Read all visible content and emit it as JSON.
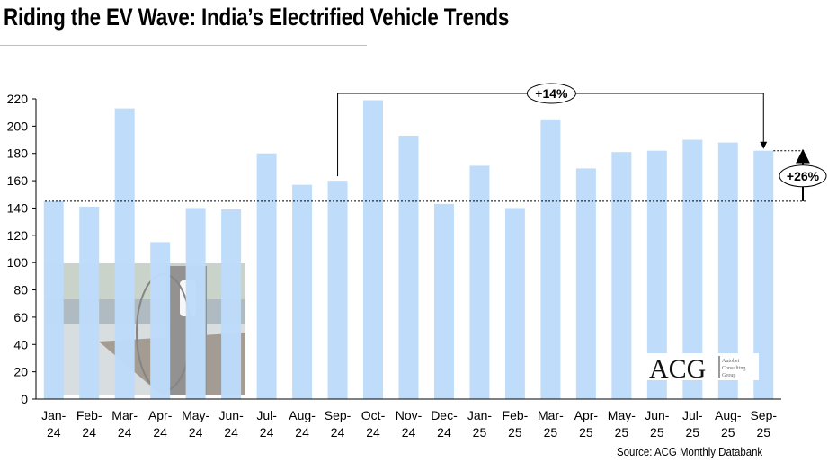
{
  "title": "Riding the EV Wave: India’s Electrified Vehicle Trends",
  "source": "Source: ACG Monthly Databank",
  "logo": {
    "text": "ACG",
    "subtext": [
      "Autobei",
      "Consulting",
      "Group"
    ]
  },
  "colors": {
    "bar": "#bddcfa",
    "axis": "#000000"
  },
  "chart_data": {
    "type": "bar",
    "categories": [
      "Jan-24",
      "Feb-24",
      "Mar-24",
      "Apr-24",
      "May-24",
      "Jun-24",
      "Jul-24",
      "Aug-24",
      "Sep-24",
      "Oct-24",
      "Nov-24",
      "Dec-24",
      "Jan-25",
      "Feb-25",
      "Mar-25",
      "Apr-25",
      "May-25",
      "Jun-25",
      "Jul-25",
      "Aug-25",
      "Sep-25"
    ],
    "values": [
      145,
      141,
      213,
      115,
      140,
      139,
      180,
      157,
      160,
      219,
      193,
      143,
      171,
      140,
      205,
      169,
      181,
      182,
      190,
      188,
      182
    ],
    "ylim": [
      0,
      220
    ],
    "yticks": [
      0,
      20,
      40,
      60,
      80,
      100,
      120,
      140,
      160,
      180,
      200,
      220
    ],
    "grid": false,
    "annotations": [
      {
        "label": "+14%",
        "from": "Sep-24",
        "to": "Sep-25",
        "type": "bracket-arrow"
      },
      {
        "label": "+26%",
        "from_value": 145,
        "to_value": 182,
        "type": "vertical-arrow"
      }
    ],
    "reference_line": 145
  }
}
